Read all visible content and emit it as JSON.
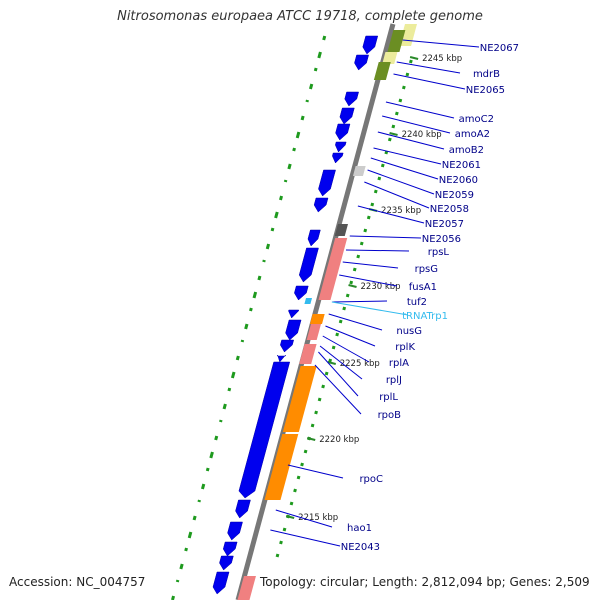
{
  "title": "Nitrosomonas europaea ATCC 19718, complete genome",
  "footer": {
    "accession": "Accession: NC_004757",
    "topology": "Topology: circular; Length: 2,812,094 bp; Genes: 2,509"
  },
  "colors": {
    "backbone": "#777777",
    "cds": "#0000ee",
    "olive": "#6b8e23",
    "light_yellow": "#ecec9c",
    "pink": "#f08080",
    "orange": "#ff8c00",
    "grey": "#555555",
    "light_grey": "#cccccc",
    "label_line": "#0000cc",
    "trna": "#33bbee",
    "gc_skew": "#1e9a1e"
  },
  "scale_marks": [
    "2245 kbp",
    "2240 kbp",
    "2235 kbp",
    "2230 kbp",
    "2225 kbp",
    "2220 kbp",
    "2215 kbp"
  ],
  "gene_labels": [
    {
      "name": "NE2067",
      "type": "cds"
    },
    {
      "name": "mdrB",
      "type": "cds"
    },
    {
      "name": "NE2065",
      "type": "cds"
    },
    {
      "name": "amoC2",
      "type": "cds"
    },
    {
      "name": "amoA2",
      "type": "cds"
    },
    {
      "name": "amoB2",
      "type": "cds"
    },
    {
      "name": "NE2061",
      "type": "cds"
    },
    {
      "name": "NE2060",
      "type": "cds"
    },
    {
      "name": "NE2059",
      "type": "cds"
    },
    {
      "name": "NE2058",
      "type": "cds"
    },
    {
      "name": "NE2057",
      "type": "cds"
    },
    {
      "name": "NE2056",
      "type": "cds"
    },
    {
      "name": "rpsL",
      "type": "cds"
    },
    {
      "name": "rpsG",
      "type": "cds"
    },
    {
      "name": "fusA1",
      "type": "cds"
    },
    {
      "name": "tuf2",
      "type": "cds"
    },
    {
      "name": "tRNATrp1",
      "type": "trna"
    },
    {
      "name": "nusG",
      "type": "cds"
    },
    {
      "name": "rplK",
      "type": "cds"
    },
    {
      "name": "rplA",
      "type": "cds"
    },
    {
      "name": "rplJ",
      "type": "cds"
    },
    {
      "name": "rplL",
      "type": "cds"
    },
    {
      "name": "rpoB",
      "type": "cds"
    },
    {
      "name": "rpoC",
      "type": "cds"
    },
    {
      "name": "hao1",
      "type": "cds"
    },
    {
      "name": "NE2043",
      "type": "cds"
    }
  ]
}
